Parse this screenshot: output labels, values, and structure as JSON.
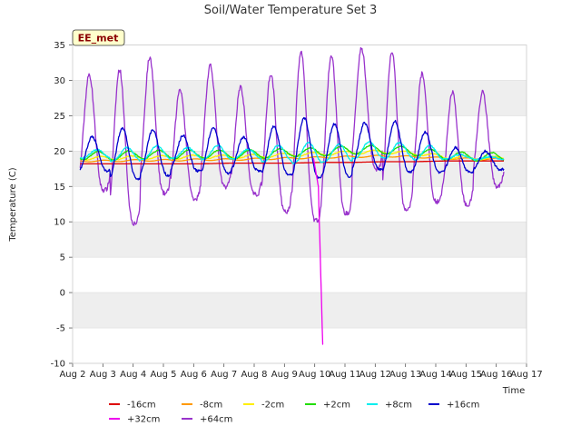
{
  "chart_data": {
    "type": "line",
    "title": "Soil/Water Temperature Set 3",
    "xlabel": "Time",
    "ylabel": "Temperature (C)",
    "badge": "EE_met",
    "xlim": [
      0,
      15
    ],
    "ylim": [
      -10,
      35
    ],
    "yticks": [
      -10,
      -5,
      0,
      5,
      10,
      15,
      20,
      25,
      30,
      35
    ],
    "xticks": [
      0,
      1,
      2,
      3,
      4,
      5,
      6,
      7,
      8,
      9,
      10,
      11,
      12,
      13,
      14,
      15
    ],
    "xticklabels": [
      "Aug 2",
      "Aug 3",
      "Aug 4",
      "Aug 5",
      "Aug 6",
      "Aug 7",
      "Aug 8",
      "Aug 9",
      "Aug 10",
      "Aug 11",
      "Aug 12",
      "Aug 13",
      "Aug 14",
      "Aug 15",
      "Aug 16",
      "Aug 17"
    ],
    "x_unit": "days since Aug 2",
    "series": [
      {
        "name": "-16cm",
        "color": "#dd0000"
      },
      {
        "name": "-8cm",
        "color": "#ff9900"
      },
      {
        "name": "-2cm",
        "color": "#ffee00"
      },
      {
        "name": "+2cm",
        "color": "#22dd00"
      },
      {
        "name": "+8cm",
        "color": "#00eeee"
      },
      {
        "name": "+16cm",
        "color": "#0000cc"
      },
      {
        "name": "+32cm",
        "color": "#ee00ee"
      },
      {
        "name": "+64cm",
        "color": "#9933cc"
      }
    ],
    "samples_per_day": 48,
    "start": 0.25,
    "end": 14.25,
    "daily": {
      "plus64_max": [
        30.8,
        31.5,
        33.2,
        28.8,
        32.0,
        29.0,
        31.0,
        34.0,
        33.5,
        34.5,
        34.0,
        31.0,
        28.4,
        28.3
      ],
      "plus64_min": [
        14.5,
        9.8,
        14.0,
        13.3,
        15.0,
        13.8,
        11.4,
        10.2,
        11.2,
        17.5,
        11.6,
        12.8,
        12.5,
        15.0
      ],
      "plus16_max": [
        22.0,
        23.3,
        23.0,
        22.2,
        23.3,
        22.0,
        23.5,
        24.7,
        23.8,
        24.0,
        24.2,
        22.7,
        20.5,
        20.0
      ],
      "plus16_min": [
        17.2,
        16.0,
        16.6,
        17.2,
        16.8,
        17.2,
        16.6,
        16.2,
        16.4,
        17.4,
        17.0,
        17.0,
        17.0,
        17.4
      ],
      "plus8_max": [
        20.2,
        20.5,
        20.8,
        20.5,
        20.8,
        20.3,
        20.8,
        21.2,
        21.0,
        21.3,
        21.2,
        20.8,
        19.5,
        19.2
      ],
      "plus8_min": [
        19.0,
        18.6,
        18.8,
        19.0,
        18.8,
        18.9,
        18.5,
        18.3,
        18.5,
        19.0,
        19.0,
        18.8,
        18.9,
        18.8
      ],
      "plus2_mean": [
        19.4,
        19.3,
        19.5,
        19.5,
        19.6,
        19.5,
        19.6,
        19.8,
        19.9,
        20.2,
        20.2,
        20.0,
        19.4,
        19.2
      ],
      "plus2_amp": 0.6,
      "minus2_mean": [
        19.0,
        19.0,
        19.1,
        19.1,
        19.2,
        19.2,
        19.3,
        19.5,
        19.6,
        19.8,
        19.9,
        19.7,
        19.2,
        19.0
      ],
      "minus2_amp": 0.25,
      "minus8_mean": [
        18.6,
        18.6,
        18.7,
        18.7,
        18.8,
        18.8,
        18.9,
        19.0,
        19.1,
        19.2,
        19.3,
        19.2,
        19.0,
        18.9
      ],
      "minus16_mean": [
        18.2,
        18.2,
        18.2,
        18.2,
        18.2,
        18.3,
        18.3,
        18.3,
        18.4,
        18.4,
        18.5,
        18.5,
        18.6,
        18.6
      ],
      "plus32_spike": {
        "start": 7.96,
        "end": 8.28,
        "min": -7.3
      }
    }
  }
}
